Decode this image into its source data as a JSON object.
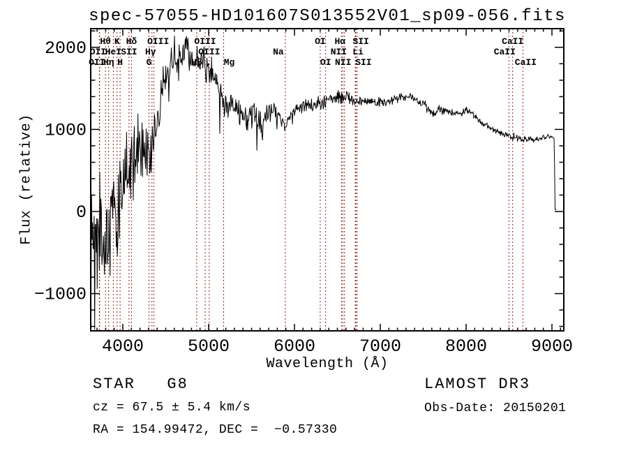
{
  "title": "spec-57055-HD101607S013552V01_sp09-056.fits",
  "footer": {
    "class_label": "STAR   G8",
    "survey": "LAMOST DR3",
    "cz": "cz = 67.5 ± 5.4 km/s",
    "obs_date": "Obs-Date: 20150201",
    "coords": "RA = 154.99472, DEC =  −0.57330"
  },
  "chart_data": {
    "type": "line",
    "title": "spec-57055-HD101607S013552V01_sp09-056.fits",
    "xlabel": "Wavelength (Å)",
    "ylabel": "Flux (relative)",
    "xlim": [
      3626,
      9138
    ],
    "ylim": [
      -1454,
      2228
    ],
    "x_major_ticks": [
      4000,
      5000,
      6000,
      7000,
      8000,
      9000
    ],
    "x_minor_step": 100,
    "y_major_ticks": [
      -1000,
      0,
      1000,
      2000
    ],
    "y_minor_step": 200,
    "grid": false,
    "legend": "none",
    "line_color": "#000000",
    "marker_color": "#8b2020",
    "frame_color": "#000000",
    "spectral_lines": [
      {
        "label": "OII",
        "wavelength": 3727,
        "row": 2,
        "dx": -2
      },
      {
        "label": "OII",
        "wavelength": 3730,
        "row": 3,
        "dx": -4
      },
      {
        "label": "Hθ",
        "wavelength": 3798,
        "row": 1,
        "dx": 0
      },
      {
        "label": "Hη",
        "wavelength": 3835,
        "row": 3,
        "dx": 0
      },
      {
        "label": "HeI",
        "wavelength": 3889,
        "row": 2,
        "dx": 0
      },
      {
        "label": "K",
        "wavelength": 3933,
        "row": 1,
        "dx": 0
      },
      {
        "label": "H",
        "wavelength": 3968,
        "row": 3,
        "dx": 0
      },
      {
        "label": "SII",
        "wavelength": 4072,
        "row": 2,
        "dx": 0
      },
      {
        "label": "Hδ",
        "wavelength": 4101,
        "row": 1,
        "dx": 0
      },
      {
        "label": "G",
        "wavelength": 4305,
        "row": 3,
        "dx": 0
      },
      {
        "label": "Hγ",
        "wavelength": 4340,
        "row": 2,
        "dx": -2
      },
      {
        "label": "OIII",
        "wavelength": 4363,
        "row": 1,
        "dx": 6
      },
      {
        "label": "Hβ",
        "wavelength": 4861,
        "row": 3,
        "dx": 0
      },
      {
        "label": "OIII",
        "wavelength": 4959,
        "row": 1,
        "dx": 0
      },
      {
        "label": "OIII",
        "wavelength": 5007,
        "row": 2,
        "dx": 0
      },
      {
        "label": "Mg",
        "wavelength": 5175,
        "row": 3,
        "dx": 8
      },
      {
        "label": "Na",
        "wavelength": 5893,
        "row": 2,
        "dx": -10
      },
      {
        "label": "OI",
        "wavelength": 6300,
        "row": 1,
        "dx": 0
      },
      {
        "label": "OI",
        "wavelength": 6363,
        "row": 3,
        "dx": 0
      },
      {
        "label": "NII",
        "wavelength": 6548,
        "row": 2,
        "dx": -4
      },
      {
        "label": "Hα",
        "wavelength": 6563,
        "row": 1,
        "dx": -4
      },
      {
        "label": "NII",
        "wavelength": 6583,
        "row": 3,
        "dx": -2
      },
      {
        "label": "Li",
        "wavelength": 6708,
        "row": 2,
        "dx": 4
      },
      {
        "label": "SII",
        "wavelength": 6716,
        "row": 1,
        "dx": 7
      },
      {
        "label": "SII",
        "wavelength": 6731,
        "row": 3,
        "dx": 9
      },
      {
        "label": "CaII",
        "wavelength": 8498,
        "row": 2,
        "dx": -6
      },
      {
        "label": "CaII",
        "wavelength": 8542,
        "row": 1,
        "dx": 0
      },
      {
        "label": "CaII",
        "wavelength": 8662,
        "row": 3,
        "dx": 4
      }
    ],
    "wavelength_range": [
      3630,
      9048
    ],
    "sample_step": 6,
    "seed": 57055,
    "continuum": [
      [
        3630,
        -380
      ],
      [
        3700,
        -300
      ],
      [
        3740,
        -250
      ],
      [
        3780,
        -180
      ],
      [
        3820,
        -230
      ],
      [
        3860,
        -120
      ],
      [
        3900,
        -40
      ],
      [
        3940,
        60
      ],
      [
        3980,
        220
      ],
      [
        4010,
        420
      ],
      [
        4040,
        520
      ],
      [
        4070,
        560
      ],
      [
        4100,
        500
      ],
      [
        4140,
        640
      ],
      [
        4180,
        760
      ],
      [
        4220,
        810
      ],
      [
        4260,
        790
      ],
      [
        4300,
        700
      ],
      [
        4340,
        780
      ],
      [
        4380,
        980
      ],
      [
        4420,
        1220
      ],
      [
        4460,
        1460
      ],
      [
        4500,
        1660
      ],
      [
        4550,
        1800
      ],
      [
        4600,
        1900
      ],
      [
        4650,
        1950
      ],
      [
        4700,
        1910
      ],
      [
        4750,
        1950
      ],
      [
        4800,
        1870
      ],
      [
        4850,
        1760
      ],
      [
        4880,
        1830
      ],
      [
        4920,
        1840
      ],
      [
        4960,
        1780
      ],
      [
        5000,
        1730
      ],
      [
        5050,
        1690
      ],
      [
        5100,
        1540
      ],
      [
        5160,
        1340
      ],
      [
        5200,
        1300
      ],
      [
        5250,
        1340
      ],
      [
        5300,
        1290
      ],
      [
        5350,
        1230
      ],
      [
        5400,
        1170
      ],
      [
        5450,
        1130
      ],
      [
        5500,
        1180
      ],
      [
        5550,
        1140
      ],
      [
        5600,
        1100
      ],
      [
        5650,
        1140
      ],
      [
        5700,
        1190
      ],
      [
        5750,
        1240
      ],
      [
        5800,
        1230
      ],
      [
        5850,
        1160
      ],
      [
        5893,
        1010
      ],
      [
        5930,
        1140
      ],
      [
        6000,
        1230
      ],
      [
        6100,
        1280
      ],
      [
        6200,
        1300
      ],
      [
        6300,
        1320
      ],
      [
        6400,
        1360
      ],
      [
        6500,
        1400
      ],
      [
        6560,
        1370
      ],
      [
        6620,
        1395
      ],
      [
        6700,
        1350
      ],
      [
        6800,
        1345
      ],
      [
        6900,
        1335
      ],
      [
        7000,
        1345
      ],
      [
        7100,
        1330
      ],
      [
        7200,
        1380
      ],
      [
        7300,
        1410
      ],
      [
        7400,
        1385
      ],
      [
        7500,
        1305
      ],
      [
        7570,
        1235
      ],
      [
        7620,
        1180
      ],
      [
        7680,
        1240
      ],
      [
        7750,
        1225
      ],
      [
        7800,
        1210
      ],
      [
        7900,
        1195
      ],
      [
        7960,
        1215
      ],
      [
        8010,
        1230
      ],
      [
        8060,
        1195
      ],
      [
        8120,
        1140
      ],
      [
        8200,
        1060
      ],
      [
        8300,
        1010
      ],
      [
        8400,
        965
      ],
      [
        8480,
        935
      ],
      [
        8520,
        905
      ],
      [
        8560,
        915
      ],
      [
        8620,
        895
      ],
      [
        8662,
        870
      ],
      [
        8700,
        885
      ],
      [
        8750,
        878
      ],
      [
        8800,
        872
      ],
      [
        8850,
        882
      ],
      [
        8900,
        898
      ],
      [
        8950,
        908
      ],
      [
        9000,
        898
      ],
      [
        9020,
        888
      ],
      [
        9028,
        860
      ],
      [
        9034,
        40
      ],
      [
        9040,
        15
      ],
      [
        9048,
        25
      ]
    ],
    "noise_sigma": [
      [
        3630,
        550
      ],
      [
        3800,
        520
      ],
      [
        3900,
        480
      ],
      [
        4000,
        400
      ],
      [
        4100,
        360
      ],
      [
        4200,
        330
      ],
      [
        4300,
        300
      ],
      [
        4400,
        240
      ],
      [
        4500,
        190
      ],
      [
        4600,
        160
      ],
      [
        4750,
        150
      ],
      [
        4900,
        150
      ],
      [
        5050,
        140
      ],
      [
        5200,
        130
      ],
      [
        5350,
        130
      ],
      [
        5500,
        120
      ],
      [
        5650,
        110
      ],
      [
        5800,
        95
      ],
      [
        5900,
        90
      ],
      [
        6000,
        75
      ],
      [
        6150,
        65
      ],
      [
        6300,
        60
      ],
      [
        6500,
        58
      ],
      [
        6700,
        52
      ],
      [
        6900,
        48
      ],
      [
        7100,
        45
      ],
      [
        7300,
        42
      ],
      [
        7500,
        45
      ],
      [
        7620,
        50
      ],
      [
        7800,
        38
      ],
      [
        8000,
        36
      ],
      [
        8200,
        33
      ],
      [
        8400,
        32
      ],
      [
        8600,
        30
      ],
      [
        8800,
        26
      ],
      [
        8950,
        24
      ],
      [
        9025,
        20
      ],
      [
        9032,
        12
      ],
      [
        9048,
        10
      ]
    ]
  }
}
